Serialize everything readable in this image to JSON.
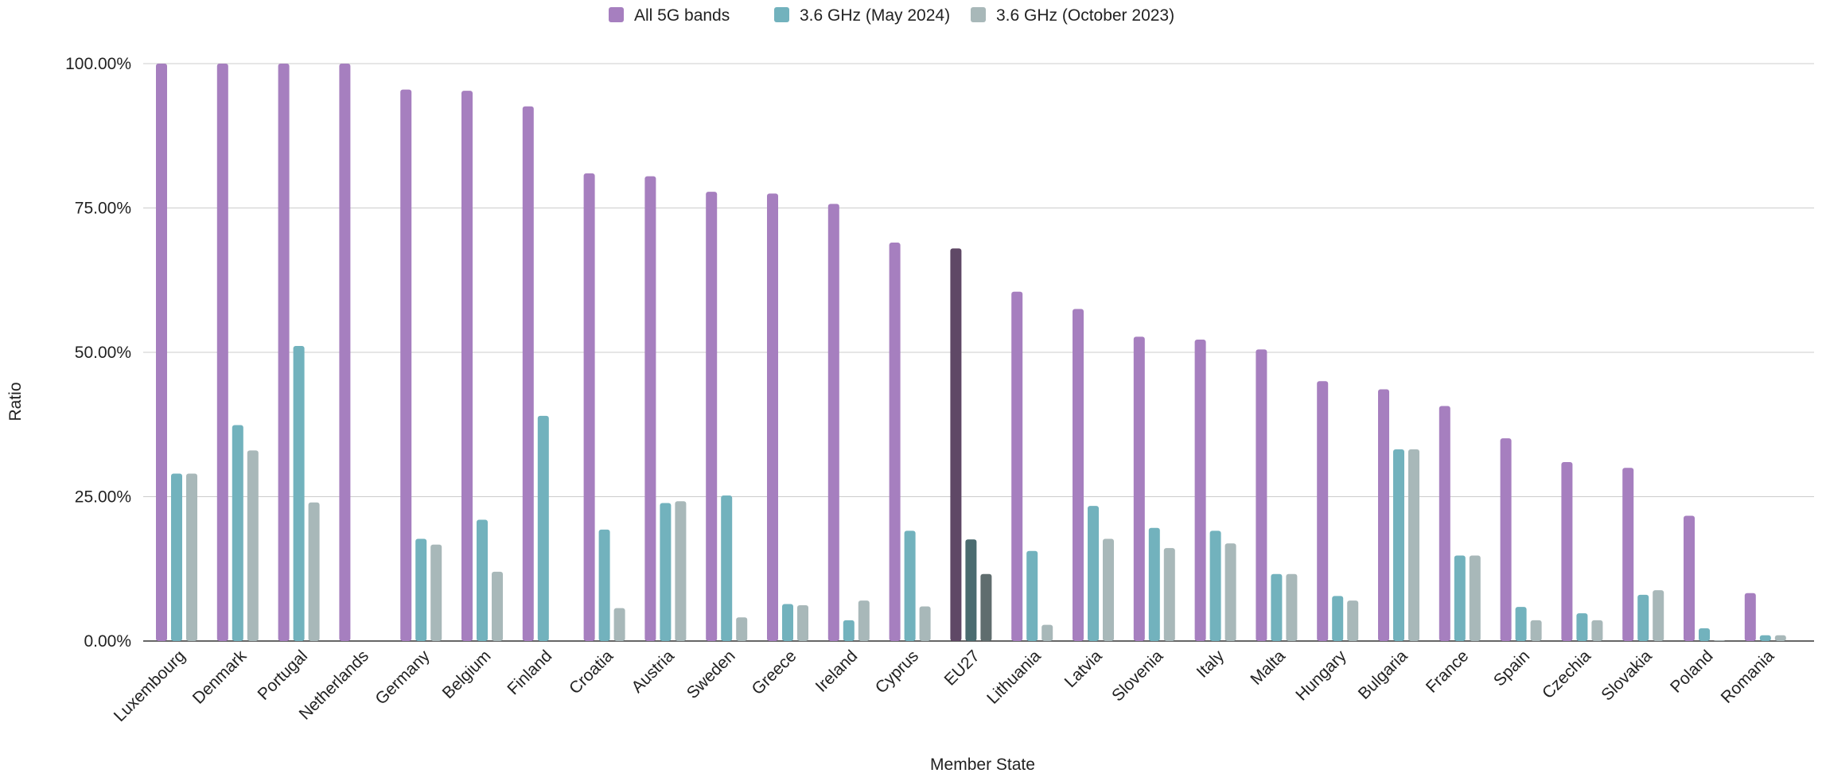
{
  "chart_data": {
    "type": "bar",
    "title": "",
    "xlabel": "Member State",
    "ylabel": "Ratio",
    "ylim": [
      0,
      100
    ],
    "yticks": [
      "0.00%",
      "25.00%",
      "50.00%",
      "75.00%",
      "100.00%"
    ],
    "ytick_values": [
      0,
      25,
      50,
      75,
      100
    ],
    "grid": true,
    "legend_position": "top",
    "categories": [
      "Luxembourg",
      "Denmark",
      "Portugal",
      "Netherlands",
      "Germany",
      "Belgium",
      "Finland",
      "Croatia",
      "Austria",
      "Sweden",
      "Greece",
      "Ireland",
      "Cyprus",
      "EU27",
      "Lithuania",
      "Latvia",
      "Slovenia",
      "Italy",
      "Malta",
      "Hungary",
      "Bulgaria",
      "France",
      "Spain",
      "Czechia",
      "Slovakia",
      "Poland",
      "Romania"
    ],
    "highlight_category": "EU27",
    "series": [
      {
        "name": "All 5G bands",
        "color": "#a67fbf",
        "highlight_color": "#5f4866",
        "values": [
          100,
          100,
          100,
          100,
          95.5,
          95.3,
          92.6,
          81,
          80.5,
          77.8,
          77.5,
          75.7,
          69,
          68,
          60.5,
          57.5,
          52.7,
          52.2,
          50.5,
          45,
          43.6,
          40.7,
          35.1,
          31,
          30,
          21.7,
          8.3
        ]
      },
      {
        "name": "3.6 GHz (May 2024)",
        "color": "#72b2bd",
        "highlight_color": "#4b6c70",
        "values": [
          29,
          37.4,
          51.1,
          0,
          17.7,
          21,
          39,
          19.3,
          23.9,
          25.2,
          6.4,
          3.6,
          19.1,
          17.6,
          15.6,
          23.4,
          19.6,
          19.1,
          11.6,
          7.8,
          33.2,
          14.8,
          5.9,
          4.8,
          8,
          2.2,
          1
        ]
      },
      {
        "name": "3.6 GHz (October 2023)",
        "color": "#a8b8b9",
        "highlight_color": "#5f6d6e",
        "values": [
          29,
          33,
          24,
          0,
          16.7,
          12,
          0,
          5.7,
          24.2,
          4.1,
          6.2,
          7,
          6,
          11.6,
          2.8,
          17.7,
          16.1,
          16.9,
          11.6,
          7,
          33.2,
          14.8,
          3.6,
          3.6,
          8.8,
          0.1,
          1
        ]
      }
    ]
  }
}
